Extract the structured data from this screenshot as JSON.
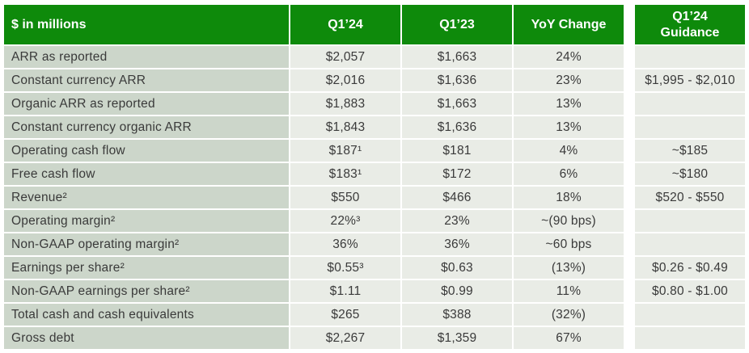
{
  "colors": {
    "header_green": "#0E8A0B",
    "label_cell_bg": "#CCD6CA",
    "value_cell_bg": "#E9ECE6",
    "grid_white": "#FFFFFF",
    "body_text": "#3A3A3A",
    "header_text": "#FFFFFF"
  },
  "chart_data": {
    "type": "table",
    "title": "",
    "headers": {
      "metric": "$ in millions",
      "q1_24": "Q1’24",
      "q1_23": "Q1’23",
      "yoy": "YoY Change",
      "guidance": "Q1’24\nGuidance"
    },
    "rows": [
      {
        "metric": "ARR as reported",
        "q1_24": "$2,057",
        "q1_23": "$1,663",
        "yoy": "24%",
        "guidance": ""
      },
      {
        "metric": "Constant currency ARR",
        "q1_24": "$2,016",
        "q1_23": "$1,636",
        "yoy": "23%",
        "guidance": "$1,995 - $2,010"
      },
      {
        "metric": "Organic ARR as reported",
        "q1_24": "$1,883",
        "q1_23": "$1,663",
        "yoy": "13%",
        "guidance": ""
      },
      {
        "metric": "Constant currency organic ARR",
        "q1_24": "$1,843",
        "q1_23": "$1,636",
        "yoy": "13%",
        "guidance": ""
      },
      {
        "metric": "Operating cash flow",
        "q1_24": "$187¹",
        "q1_23": "$181",
        "yoy": "4%",
        "guidance": "~$185"
      },
      {
        "metric": "Free cash flow",
        "q1_24": "$183¹",
        "q1_23": "$172",
        "yoy": "6%",
        "guidance": "~$180"
      },
      {
        "metric": "Revenue²",
        "q1_24": "$550",
        "q1_23": "$466",
        "yoy": "18%",
        "guidance": "$520 - $550"
      },
      {
        "metric": "Operating margin²",
        "q1_24": "22%³",
        "q1_23": "23%",
        "yoy": "~(90 bps)",
        "guidance": ""
      },
      {
        "metric": "Non-GAAP operating margin²",
        "q1_24": "36%",
        "q1_23": "36%",
        "yoy": "~60 bps",
        "guidance": ""
      },
      {
        "metric": "Earnings per share²",
        "q1_24": "$0.55³",
        "q1_23": "$0.63",
        "yoy": "(13%)",
        "guidance": "$0.26 - $0.49"
      },
      {
        "metric": "Non-GAAP earnings per share²",
        "q1_24": "$1.11",
        "q1_23": "$0.99",
        "yoy": "11%",
        "guidance": "$0.80 - $1.00"
      },
      {
        "metric": "Total cash and cash equivalents",
        "q1_24": "$265",
        "q1_23": "$388",
        "yoy": "(32%)",
        "guidance": ""
      },
      {
        "metric": "Gross debt",
        "q1_24": "$2,267",
        "q1_23": "$1,359",
        "yoy": "67%",
        "guidance": ""
      }
    ]
  }
}
